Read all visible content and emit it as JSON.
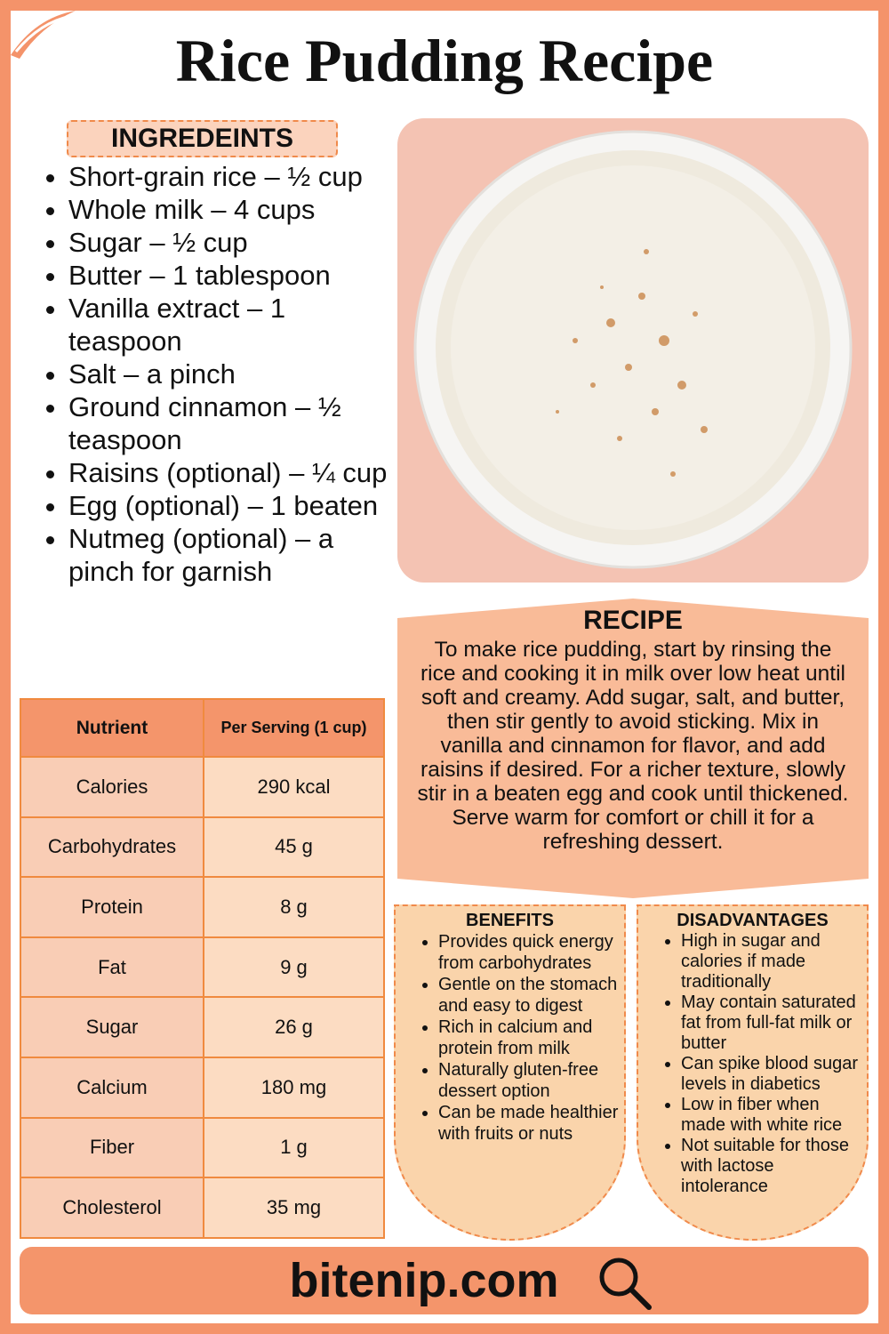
{
  "header": {
    "title": "Rice Pudding Recipe"
  },
  "ingredients": {
    "heading": "INGREDEINTS",
    "items": [
      "Short-grain rice – ½ cup",
      "Whole milk – 4 cups",
      "Sugar – ½ cup",
      "Butter – 1 tablespoon",
      "Vanilla extract – 1 teaspoon",
      "Salt – a pinch",
      "Ground cinnamon – ½ teaspoon",
      "Raisins (optional) – ¼ cup",
      "Egg (optional) – 1 beaten",
      "Nutmeg (optional) – a pinch for garnish"
    ]
  },
  "recipe": {
    "heading": "RECIPE",
    "text": "To make rice pudding, start by rinsing the rice and cooking it in milk over low heat until soft and creamy. Add sugar, salt, and butter, then stir gently to avoid sticking. Mix in vanilla and cinnamon for flavor, and add raisins if desired. For a richer texture, slowly stir in a beaten egg and cook until thickened. Serve warm for comfort or chill it for a refreshing dessert."
  },
  "nutrition": {
    "columns": [
      "Nutrient",
      "Per Serving (1 cup)"
    ],
    "rows": [
      [
        "Calories",
        "290 kcal"
      ],
      [
        "Carbohydrates",
        "45 g"
      ],
      [
        "Protein",
        "8 g"
      ],
      [
        "Fat",
        "9 g"
      ],
      [
        "Sugar",
        "26 g"
      ],
      [
        "Calcium",
        "180 mg"
      ],
      [
        "Fiber",
        "1 g"
      ],
      [
        "Cholesterol",
        "35 mg"
      ]
    ]
  },
  "benefits": {
    "heading": "BENEFITS",
    "items": [
      "Provides quick energy from carbohydrates",
      "Gentle on the stomach and easy to digest",
      "Rich in calcium and protein from milk",
      "Naturally gluten-free dessert option",
      "Can be made healthier with fruits or nuts"
    ]
  },
  "disadvantages": {
    "heading": "DISADVANTAGES",
    "items": [
      "High in sugar and calories if made traditionally",
      "May contain saturated fat from full-fat milk or butter",
      "Can spike blood sugar levels in diabetics",
      "Low in fiber when made with white rice",
      "Not suitable for those with lactose intolerance"
    ]
  },
  "footer": {
    "site": "bitenip.com"
  }
}
